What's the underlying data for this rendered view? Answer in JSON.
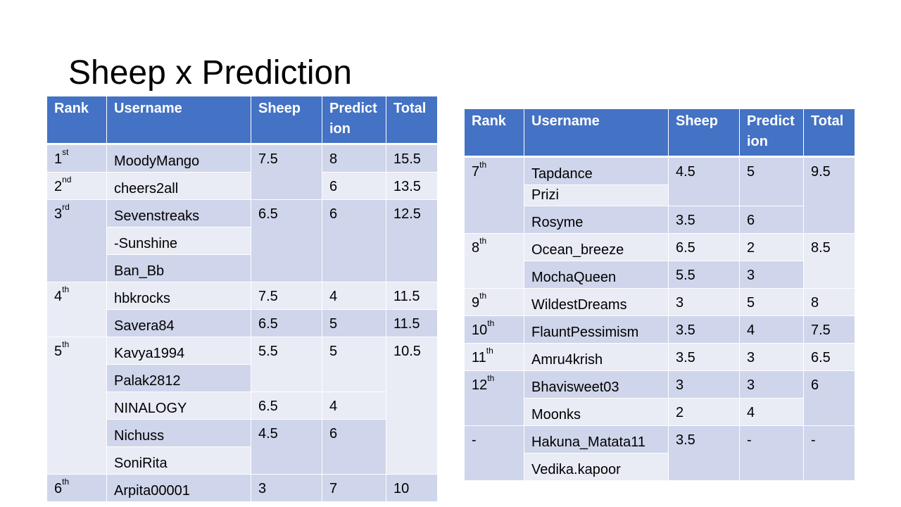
{
  "slide": {
    "title": "Sheep x Prediction"
  },
  "headers": {
    "rank": "Rank",
    "username": "Username",
    "sheep": "Sheep",
    "prediction": "Prediction",
    "total": "Total"
  },
  "left_table": {
    "r1": {
      "rank": "1",
      "rank_suffix": "st",
      "user": "MoodyMango",
      "sheep": "7.5",
      "prediction": "8",
      "total": "15.5"
    },
    "r2": {
      "rank": "2",
      "rank_suffix": "nd",
      "user": "cheers2all",
      "prediction": "6",
      "total": "13.5"
    },
    "r3": {
      "rank": "3",
      "rank_suffix": "rd",
      "users": [
        "Sevenstreaks",
        "-Sunshine",
        "Ban_Bb"
      ],
      "sheep": "6.5",
      "prediction": "6",
      "total": "12.5"
    },
    "r4": {
      "rank": "4",
      "rank_suffix": "th",
      "users": [
        "hbkrocks",
        "Savera84"
      ],
      "sheep": [
        "7.5",
        "6.5"
      ],
      "prediction": [
        "4",
        "5"
      ],
      "total": [
        "11.5",
        "11.5"
      ]
    },
    "r5": {
      "rank": "5",
      "rank_suffix": "th",
      "users": [
        "Kavya1994",
        "Palak2812",
        "NINALOGY",
        "Nichuss",
        "SoniRita"
      ],
      "sheep": [
        "5.5",
        "6.5",
        "4.5"
      ],
      "prediction": [
        "5",
        "4",
        "6"
      ],
      "total": "10.5"
    },
    "r6": {
      "rank": "6",
      "rank_suffix": "th",
      "user": "Arpita00001",
      "sheep": "3",
      "prediction": "7",
      "total": "10"
    }
  },
  "right_table": {
    "r7": {
      "rank": "7",
      "rank_suffix": "th",
      "users": [
        "Tapdance",
        "Prizi",
        "Rosyme"
      ],
      "sheep": [
        "4.5",
        "3.5"
      ],
      "prediction": [
        "5",
        "6"
      ],
      "total": "9.5"
    },
    "r8": {
      "rank": "8",
      "rank_suffix": "th",
      "users": [
        "Ocean_breeze",
        "MochaQueen"
      ],
      "sheep": [
        "6.5",
        "5.5"
      ],
      "prediction": [
        "2",
        "3"
      ],
      "total": "8.5"
    },
    "r9": {
      "rank": "9",
      "rank_suffix": "th",
      "user": "WildestDreams",
      "sheep": "3",
      "prediction": "5",
      "total": "8"
    },
    "r10": {
      "rank": "10",
      "rank_suffix": "th",
      "user": "FlauntPessimism",
      "sheep": "3.5",
      "prediction": "4",
      "total": "7.5"
    },
    "r11": {
      "rank": "11",
      "rank_suffix": "th",
      "user": "Amru4krish",
      "sheep": "3.5",
      "prediction": "3",
      "total": "6.5"
    },
    "r12": {
      "rank": "12",
      "rank_suffix": "th",
      "users": [
        "Bhavisweet03",
        "Moonks"
      ],
      "sheep": [
        "3",
        "2"
      ],
      "prediction": [
        "3",
        "4"
      ],
      "total": "6"
    },
    "rdash": {
      "rank": "-",
      "users": [
        "Hakuna_Matata11",
        "Vedika.kapoor"
      ],
      "sheep": "3.5",
      "prediction": "-",
      "total": "-"
    }
  },
  "colors": {
    "header": "#4472c4",
    "row_dark": "#cfd5ea",
    "row_light": "#e9ebf5",
    "header_text": "#ffffff"
  }
}
